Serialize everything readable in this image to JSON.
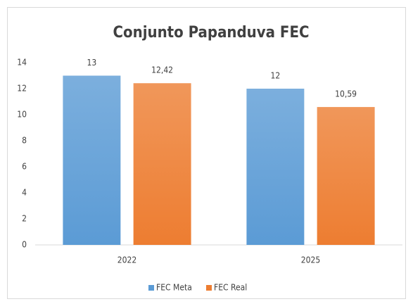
{
  "chart_data": {
    "type": "bar",
    "title": "Conjunto Papanduva FEC",
    "categories": [
      "2022",
      "2025"
    ],
    "series": [
      {
        "name": "FEC Meta",
        "color": "#5b9bd5",
        "values": [
          13,
          12
        ],
        "value_labels": [
          "13",
          "12"
        ]
      },
      {
        "name": "FEC Real",
        "color": "#ed7d31",
        "values": [
          12.42,
          10.59
        ],
        "value_labels": [
          "12,42",
          "10,59"
        ]
      }
    ],
    "ylim": [
      0,
      14
    ],
    "yticks": [
      0,
      2,
      4,
      6,
      8,
      10,
      12,
      14
    ],
    "grid": false,
    "legend": "bottom"
  }
}
